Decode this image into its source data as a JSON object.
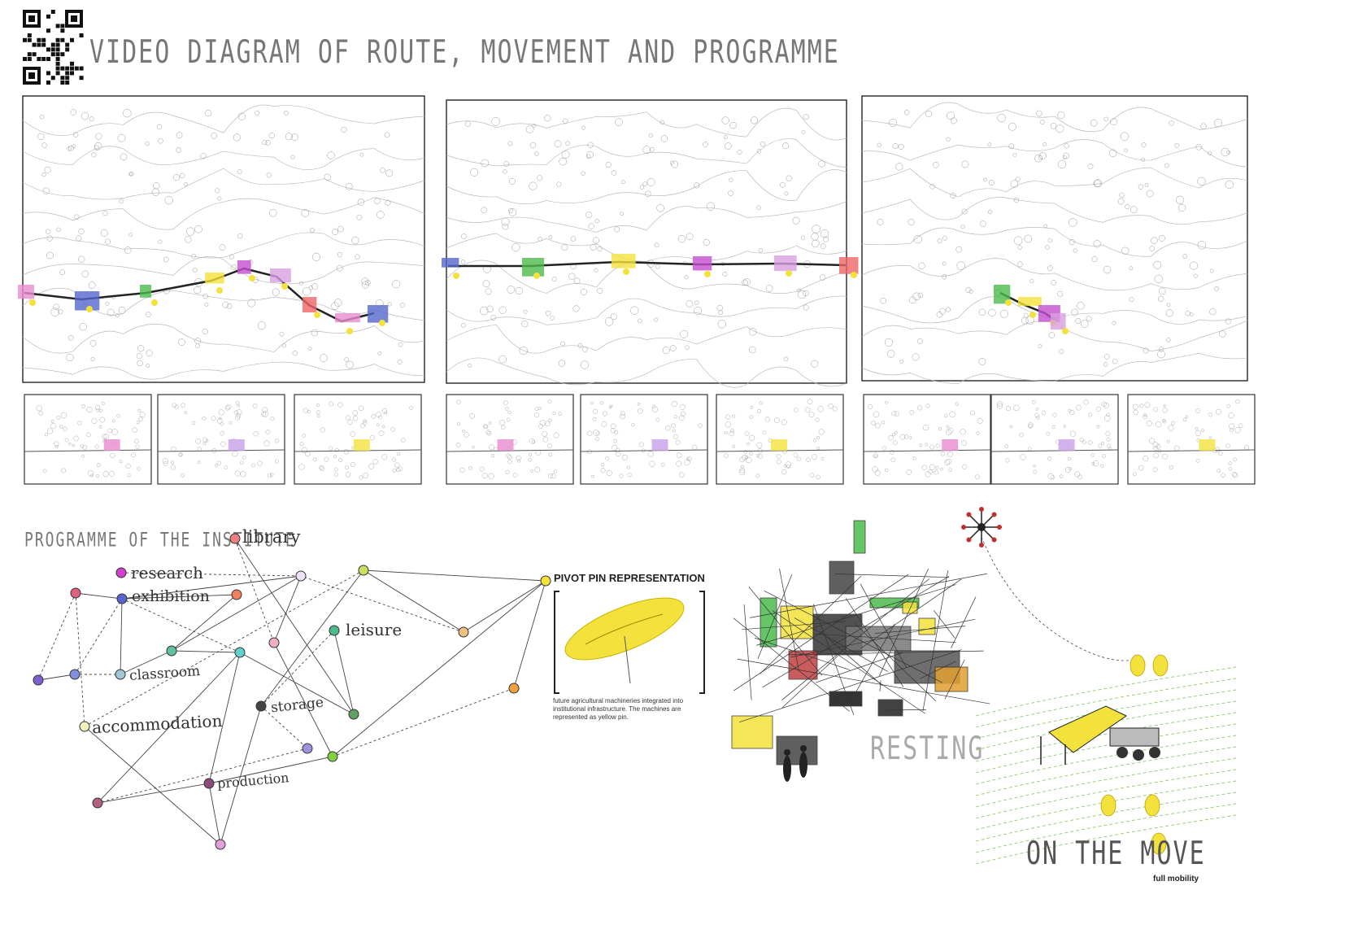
{
  "header": {
    "title": "VIDEO DIAGRAM OF ROUTE, MOVEMENT AND PROGRAMME"
  },
  "programme": {
    "title": "PROGRAMME OF THE INSTITUTE",
    "labels": {
      "library": "library",
      "research": "research",
      "exhibition": "exhibition",
      "leisure": "leisure",
      "classroom": "classroom",
      "storage": "storage",
      "accommodation": "accommodation",
      "production": "production"
    }
  },
  "pivot": {
    "title": "PIVOT PIN REPRESENTATION",
    "caption": "future agricultural machineries integrated into institutional infrastructure. The machines are represented as yellow pin."
  },
  "resting_label": "RESTING",
  "on_the_move_label": "ON THE MOVE",
  "full_mobility_label": "full mobility",
  "colors": {
    "yellow": "#f4e23c",
    "pink": "#e88ccf",
    "blue": "#5566cc",
    "green": "#4cbb4c",
    "line": "#444444"
  }
}
